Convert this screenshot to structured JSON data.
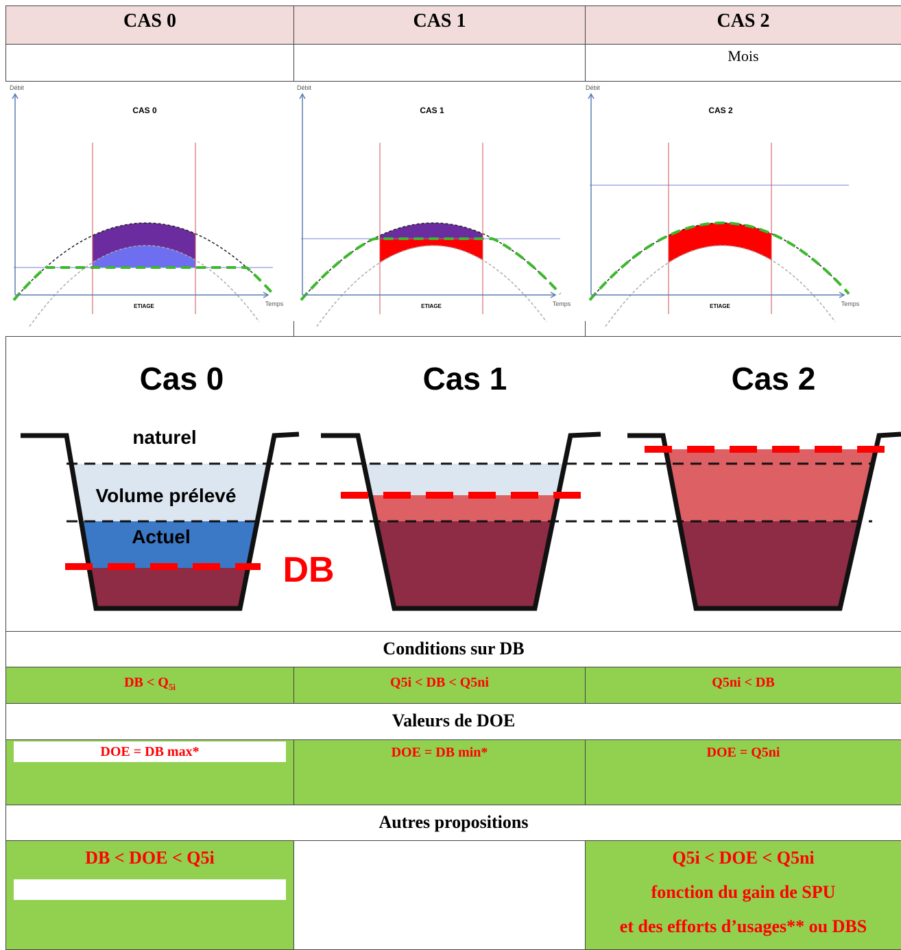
{
  "header": {
    "cells": [
      "CAS 0",
      "CAS 1",
      "CAS 2"
    ]
  },
  "subheader": {
    "label": "Mois"
  },
  "charts": [
    {
      "y_label": "Débit",
      "title": "CAS 0",
      "band_label": "ETIAGE",
      "x_label": "Temps"
    },
    {
      "y_label": "Débit",
      "title": "CAS 1",
      "band_label": "ETIAGE",
      "x_label": "Temps"
    },
    {
      "y_label": "Débit",
      "title": "CAS 2",
      "band_label": "ETIAGE",
      "x_label": "Temps"
    }
  ],
  "cross_section": {
    "titles": [
      "Cas 0",
      "Cas 1",
      "Cas 2"
    ],
    "labels": {
      "natural": "naturel",
      "withdrawn": "Volume prélevé",
      "current": "Actuel",
      "db": "DB"
    }
  },
  "conditions": {
    "title": "Conditions sur DB",
    "cells": [
      {
        "text": "DB < Q",
        "subscript": "5i"
      },
      "Q5i < DB < Q5ni",
      "Q5ni < DB"
    ]
  },
  "doe": {
    "title": "Valeurs de DOE",
    "cells": [
      "DOE = DB max*",
      "DOE = DB min*",
      "DOE = Q5ni"
    ]
  },
  "other": {
    "title": "Autres propositions",
    "left": [
      "DB < DOE < Q5i"
    ],
    "right": [
      "Q5i < DOE < Q5ni",
      "fonction du gain de SPU",
      "et des efforts d’usages** ou DBS"
    ]
  }
}
